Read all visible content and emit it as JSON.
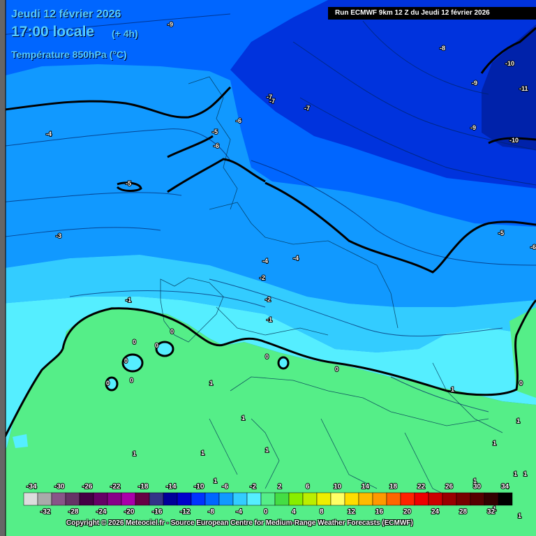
{
  "header": {
    "date": "Jeudi 12 février 2026",
    "time": "17:00 locale",
    "offset": "(+ 4h)",
    "variable": "Température 850hPa (°C)"
  },
  "run_info": "Run ECMWF 9km 12 Z du Jeudi 12 février 2026",
  "copyright": "Copyright © 2026 Meteociel.fr - Source European Centre for Medium-Range Weather Forecasts (ECMWF)",
  "colors": {
    "land_green": "#55ee88",
    "band_0_to_-2": "#55eeff",
    "band_-2_to_-4": "#33ccff",
    "band_-4_to_-6": "#1199ff",
    "band_-6_to_-8": "#0066ff",
    "band_-8_to_-10": "#0033dd",
    "band_-10_to_-12": "#0022aa"
  },
  "contour_labels": [
    {
      "text": "-9"
    },
    {
      "text": "-8"
    },
    {
      "text": "-10"
    },
    {
      "text": "-11"
    },
    {
      "text": "-9"
    },
    {
      "text": "-9"
    },
    {
      "text": "-10"
    },
    {
      "text": "-7"
    },
    {
      "text": "-7"
    },
    {
      "text": "-7"
    },
    {
      "text": "-6"
    },
    {
      "text": "-5"
    },
    {
      "text": "-6"
    },
    {
      "text": "-4"
    },
    {
      "text": "-5"
    },
    {
      "text": "-3"
    },
    {
      "text": "-5"
    },
    {
      "text": "-6"
    },
    {
      "text": "-4"
    },
    {
      "text": "-4"
    },
    {
      "text": "-2"
    },
    {
      "text": "-2"
    },
    {
      "text": "-1"
    },
    {
      "text": "-1"
    },
    {
      "text": "0"
    },
    {
      "text": "0"
    },
    {
      "text": "0"
    },
    {
      "text": "0"
    },
    {
      "text": "0"
    },
    {
      "text": "0"
    },
    {
      "text": "0"
    },
    {
      "text": "0"
    },
    {
      "text": "0"
    },
    {
      "text": "1"
    },
    {
      "text": "1"
    },
    {
      "text": "1"
    },
    {
      "text": "1"
    },
    {
      "text": "1"
    },
    {
      "text": "1"
    },
    {
      "text": "1"
    },
    {
      "text": "1"
    },
    {
      "text": "1"
    },
    {
      "text": "1"
    },
    {
      "text": "1"
    },
    {
      "text": "1"
    },
    {
      "text": "1"
    },
    {
      "text": "1"
    },
    {
      "text": "1"
    }
  ],
  "scale": {
    "top_ticks": [
      "-34",
      "-30",
      "-26",
      "-22",
      "-18",
      "-14",
      "-10",
      "-6",
      "-2",
      "2",
      "6",
      "10",
      "14",
      "18",
      "22",
      "26",
      "30",
      "34"
    ],
    "bottom_ticks": [
      "-32",
      "-28",
      "-24",
      "-20",
      "-16",
      "-12",
      "-8",
      "-4",
      "0",
      "4",
      "8",
      "12",
      "16",
      "20",
      "24",
      "28",
      "32"
    ],
    "colors": [
      "#dddddd",
      "#aaaaaa",
      "#885588",
      "#663366",
      "#440044",
      "#660066",
      "#880088",
      "#aa00aa",
      "#660044",
      "#333388",
      "#000099",
      "#0000cc",
      "#0033ff",
      "#0066ff",
      "#1199ff",
      "#33ccff",
      "#55eeff",
      "#55ee88",
      "#44dd44",
      "#88ee00",
      "#bbee00",
      "#eeee00",
      "#ffff66",
      "#ffdd00",
      "#ffbb00",
      "#ff9900",
      "#ff6600",
      "#ff2200",
      "#ee0000",
      "#cc0000",
      "#990000",
      "#770000",
      "#550000",
      "#330000",
      "#000000"
    ]
  }
}
